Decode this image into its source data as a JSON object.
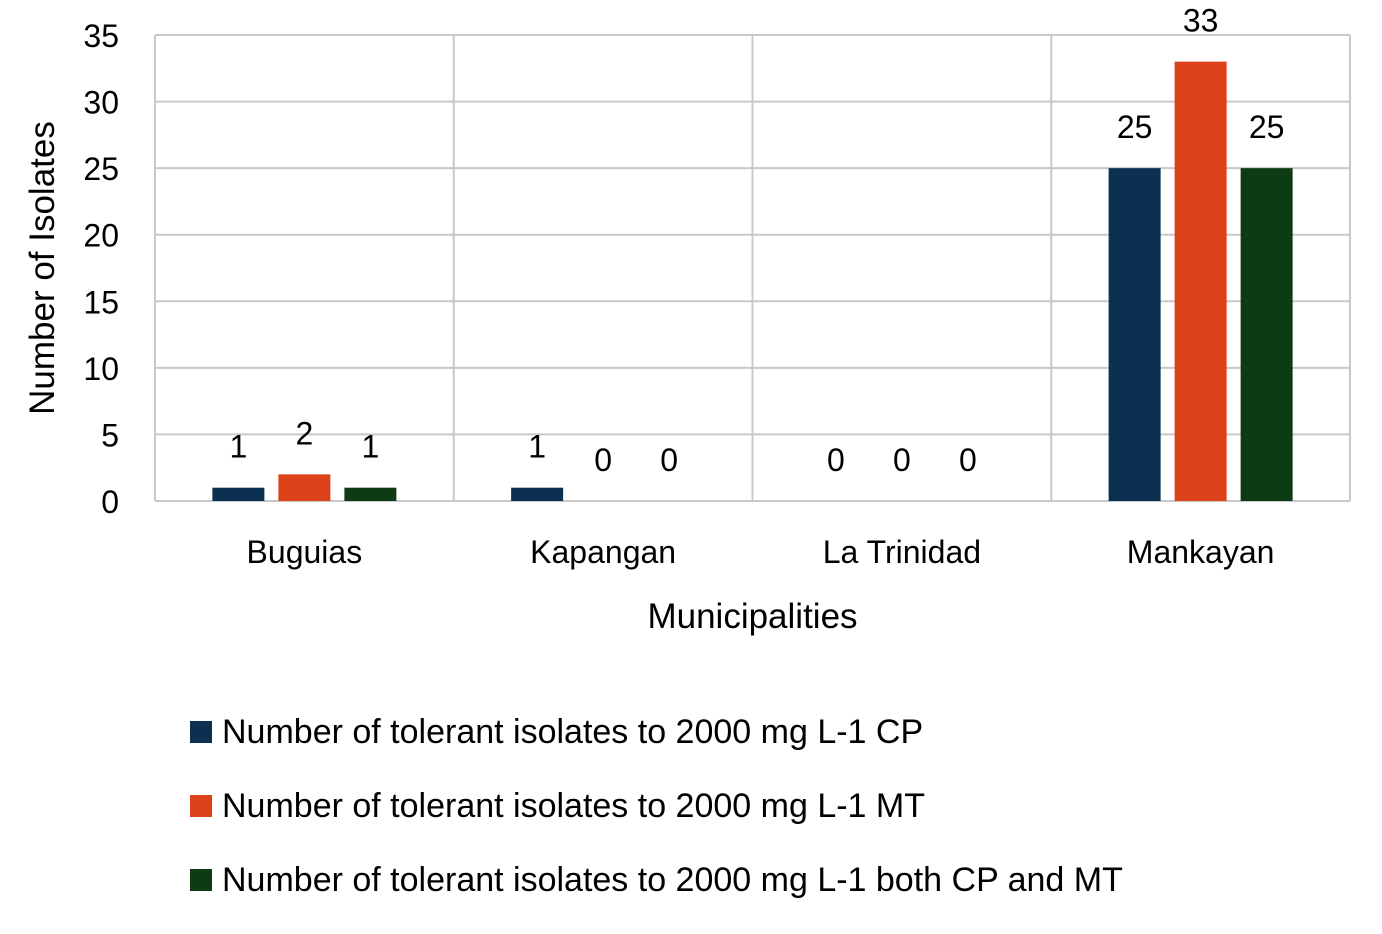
{
  "chart_data": {
    "type": "bar",
    "title": "",
    "xlabel": "Municipalities",
    "ylabel": "Number of Isolates",
    "categories": [
      "Buguias",
      "Kapangan",
      "La Trinidad",
      "Mankayan"
    ],
    "ylim": [
      0,
      35
    ],
    "yticks": [
      0,
      5,
      10,
      15,
      20,
      25,
      30,
      35
    ],
    "grid": true,
    "legend_position": "bottom",
    "series": [
      {
        "name": "Number of tolerant isolates to 2000 mg L-1 CP",
        "color": "#0b3050",
        "values": [
          1,
          1,
          0,
          25
        ]
      },
      {
        "name": "Number of tolerant isolates to 2000 mg L-1 MT",
        "color": "#dc4219",
        "values": [
          2,
          0,
          0,
          33
        ]
      },
      {
        "name": "Number of tolerant isolates to 2000 mg L-1 both CP and MT",
        "color": "#0d3c14",
        "values": [
          1,
          0,
          0,
          25
        ]
      }
    ]
  }
}
